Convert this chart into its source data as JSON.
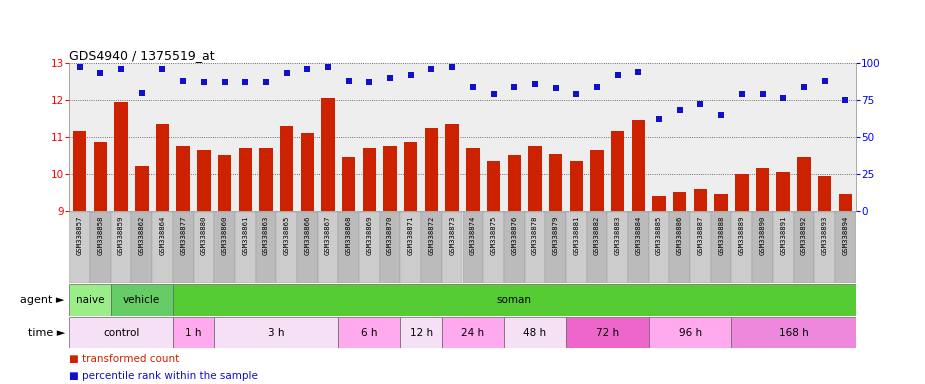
{
  "title": "GDS4940 / 1375519_at",
  "gsm_labels": [
    "GSM338857",
    "GSM338858",
    "GSM338859",
    "GSM338862",
    "GSM338864",
    "GSM338877",
    "GSM338880",
    "GSM338860",
    "GSM338861",
    "GSM338863",
    "GSM338865",
    "GSM338866",
    "GSM338867",
    "GSM338868",
    "GSM338869",
    "GSM338870",
    "GSM338871",
    "GSM338872",
    "GSM338873",
    "GSM338874",
    "GSM338875",
    "GSM338876",
    "GSM338878",
    "GSM338879",
    "GSM338881",
    "GSM338882",
    "GSM338883",
    "GSM338884",
    "GSM338885",
    "GSM338886",
    "GSM338887",
    "GSM338888",
    "GSM338889",
    "GSM338890",
    "GSM338891",
    "GSM338892",
    "GSM338893",
    "GSM338894"
  ],
  "bar_values": [
    11.15,
    10.85,
    11.95,
    10.2,
    11.35,
    10.75,
    10.65,
    10.5,
    10.7,
    10.7,
    11.3,
    11.1,
    12.05,
    10.45,
    10.7,
    10.75,
    10.85,
    11.25,
    11.35,
    10.7,
    10.35,
    10.5,
    10.75,
    10.55,
    10.35,
    10.65,
    11.15,
    11.45,
    9.4,
    9.5,
    9.6,
    9.45,
    10.0,
    10.15,
    10.05,
    10.45,
    9.95,
    9.45
  ],
  "percentile_values": [
    97,
    93,
    96,
    80,
    96,
    88,
    87,
    87,
    87,
    87,
    93,
    96,
    97,
    88,
    87,
    90,
    92,
    96,
    97,
    84,
    79,
    84,
    86,
    83,
    79,
    84,
    92,
    94,
    62,
    68,
    72,
    65,
    79,
    79,
    76,
    84,
    88,
    75
  ],
  "ylim_left": [
    9,
    13
  ],
  "ylim_right": [
    0,
    100
  ],
  "yticks_left": [
    9,
    10,
    11,
    12,
    13
  ],
  "yticks_right": [
    0,
    25,
    50,
    75,
    100
  ],
  "bar_color": "#cc2200",
  "dot_color": "#1111cc",
  "agent_groups": [
    {
      "label": "naive",
      "start": 0,
      "end": 2,
      "color": "#99ee88"
    },
    {
      "label": "vehicle",
      "start": 2,
      "end": 5,
      "color": "#66cc66"
    },
    {
      "label": "soman",
      "start": 5,
      "end": 38,
      "color": "#55cc33"
    }
  ],
  "time_groups": [
    {
      "label": "control",
      "start": 0,
      "end": 5,
      "color": "#f5e0f5"
    },
    {
      "label": "1 h",
      "start": 5,
      "end": 7,
      "color": "#ffaaee"
    },
    {
      "label": "3 h",
      "start": 7,
      "end": 13,
      "color": "#f5e0f5"
    },
    {
      "label": "6 h",
      "start": 13,
      "end": 16,
      "color": "#ffaaee"
    },
    {
      "label": "12 h",
      "start": 16,
      "end": 18,
      "color": "#f5e0f5"
    },
    {
      "label": "24 h",
      "start": 18,
      "end": 21,
      "color": "#ffaaee"
    },
    {
      "label": "48 h",
      "start": 21,
      "end": 24,
      "color": "#f5e0f5"
    },
    {
      "label": "72 h",
      "start": 24,
      "end": 28,
      "color": "#ee66cc"
    },
    {
      "label": "96 h",
      "start": 28,
      "end": 32,
      "color": "#ffaaee"
    },
    {
      "label": "168 h",
      "start": 32,
      "end": 38,
      "color": "#ee88dd"
    }
  ],
  "chart_bg": "#e8e8e8",
  "label_bg": "#d0d0d0"
}
